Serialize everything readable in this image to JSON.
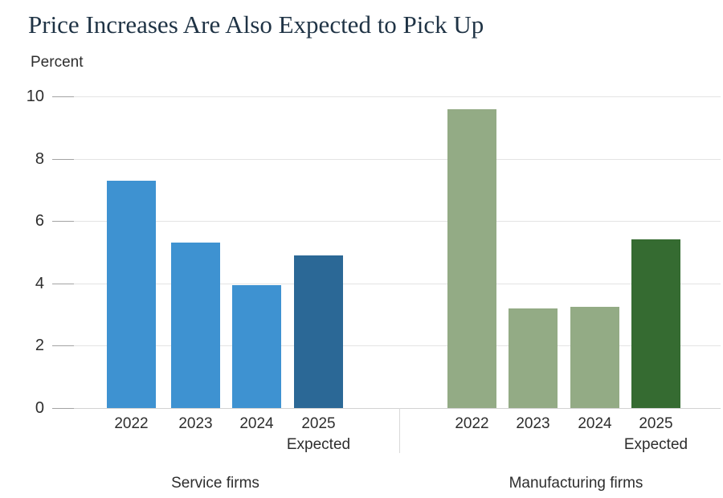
{
  "chart_data": {
    "type": "bar",
    "title": "Price Increases Are Also Expected to Pick Up",
    "ylabel": "Percent",
    "ylim": [
      0,
      10
    ],
    "yticks": [
      0,
      2,
      4,
      6,
      8,
      10
    ],
    "grid": true,
    "legend_position": "none",
    "categories": [
      "2022",
      "2023",
      "2024",
      "2025"
    ],
    "expected_note": "Expected",
    "expected_note_category": "2025",
    "groups": [
      {
        "key": "service",
        "label": "Service firms",
        "values": [
          7.3,
          5.3,
          3.95,
          4.9
        ],
        "bar_colors": [
          "#3e92d1",
          "#3e92d1",
          "#3e92d1",
          "#2b6896"
        ]
      },
      {
        "key": "manufacturing",
        "label": "Manufacturing firms",
        "values": [
          9.6,
          3.2,
          3.25,
          5.4
        ],
        "bar_colors": [
          "#93ab85",
          "#93ab85",
          "#93ab85",
          "#356b31"
        ]
      }
    ],
    "colors": {
      "service": "#3e92d1",
      "service_expected": "#2b6896",
      "manufacturing": "#93ab85",
      "manufacturing_expected": "#356b31",
      "title_text": "#1f3345",
      "axis_text": "#2e2e2e",
      "gridline": "#e3e3e3",
      "tick": "#a3a3a3",
      "divider": "#d9d9d9"
    }
  }
}
